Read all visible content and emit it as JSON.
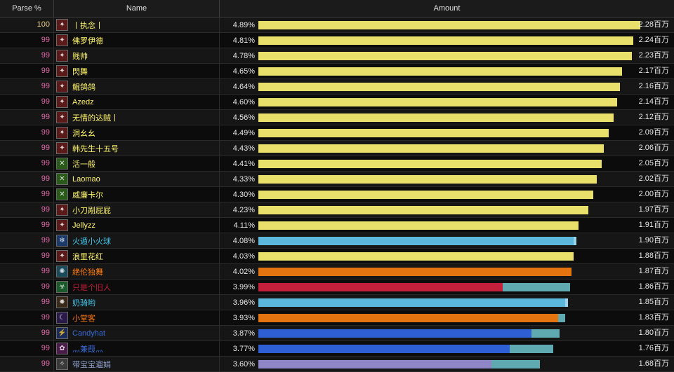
{
  "columns": {
    "parse": "Parse %",
    "name": "Name",
    "amount": "Amount"
  },
  "colors": {
    "parse_100": "#e5cc80",
    "parse_99": "#e268a8",
    "rogue": "#fff569",
    "monk": "#00ff98",
    "mage": "#40c7eb",
    "shaman": "#0070de",
    "evoker": "#33937f",
    "dh": "#a330c9",
    "dk": "#c41f3b",
    "druid": "#ff7d0a",
    "warlock": "#8787ed",
    "priest_bar": "#8fa0c8"
  },
  "rows": [
    {
      "parse": "100",
      "name": "丨执念丨",
      "pct": "4.89%",
      "value": "2.28百万",
      "amount": 2.28,
      "icon": "rogue-spec-icon",
      "icon_bg": "#5a1a1a",
      "icon_char": "✦",
      "name_color": "#fff569",
      "bar": [
        {
          "v": 2.28,
          "c": "#e8e06a"
        }
      ]
    },
    {
      "parse": "99",
      "name": "佛罗伊德",
      "pct": "4.81%",
      "value": "2.24百万",
      "amount": 2.24,
      "icon": "rogue-spec-icon",
      "icon_bg": "#5a1a1a",
      "icon_char": "✦",
      "name_color": "#fff569",
      "bar": [
        {
          "v": 2.24,
          "c": "#e8e06a"
        }
      ]
    },
    {
      "parse": "99",
      "name": "贱帅",
      "pct": "4.78%",
      "value": "2.23百万",
      "amount": 2.23,
      "icon": "rogue-spec-icon",
      "icon_bg": "#5a1a1a",
      "icon_char": "✦",
      "name_color": "#fff569",
      "bar": [
        {
          "v": 2.23,
          "c": "#e8e06a"
        }
      ]
    },
    {
      "parse": "99",
      "name": "閃舞",
      "pct": "4.65%",
      "value": "2.17百万",
      "amount": 2.17,
      "icon": "rogue-spec-icon",
      "icon_bg": "#5a1a1a",
      "icon_char": "✦",
      "name_color": "#fff569",
      "bar": [
        {
          "v": 2.17,
          "c": "#e8e06a"
        }
      ]
    },
    {
      "parse": "99",
      "name": "鲲鸽鸽",
      "pct": "4.64%",
      "value": "2.16百万",
      "amount": 2.16,
      "icon": "rogue-spec-icon",
      "icon_bg": "#5a1a1a",
      "icon_char": "✦",
      "name_color": "#fff569",
      "bar": [
        {
          "v": 2.16,
          "c": "#e8e06a"
        }
      ]
    },
    {
      "parse": "99",
      "name": "Azedz",
      "pct": "4.60%",
      "value": "2.14百万",
      "amount": 2.14,
      "icon": "rogue-spec-icon",
      "icon_bg": "#5a1a1a",
      "icon_char": "✦",
      "name_color": "#fff569",
      "bar": [
        {
          "v": 2.14,
          "c": "#e8e06a"
        }
      ]
    },
    {
      "parse": "99",
      "name": "无情的达贼丨",
      "pct": "4.56%",
      "value": "2.12百万",
      "amount": 2.12,
      "icon": "rogue-spec-icon",
      "icon_bg": "#5a1a1a",
      "icon_char": "✦",
      "name_color": "#fff569",
      "bar": [
        {
          "v": 2.12,
          "c": "#e8e06a"
        }
      ]
    },
    {
      "parse": "99",
      "name": "洞幺幺",
      "pct": "4.49%",
      "value": "2.09百万",
      "amount": 2.09,
      "icon": "rogue-spec-icon",
      "icon_bg": "#5a1a1a",
      "icon_char": "✦",
      "name_color": "#fff569",
      "bar": [
        {
          "v": 2.09,
          "c": "#e8e06a"
        }
      ]
    },
    {
      "parse": "99",
      "name": "韩先生十五号",
      "pct": "4.43%",
      "value": "2.06百万",
      "amount": 2.06,
      "icon": "rogue-spec-icon",
      "icon_bg": "#5a1a1a",
      "icon_char": "✦",
      "name_color": "#fff569",
      "bar": [
        {
          "v": 2.06,
          "c": "#e8e06a"
        }
      ]
    },
    {
      "parse": "99",
      "name": "活一般",
      "pct": "4.41%",
      "value": "2.05百万",
      "amount": 2.05,
      "icon": "outlaw-spec-icon",
      "icon_bg": "#2a5a1a",
      "icon_char": "✕",
      "name_color": "#fff569",
      "bar": [
        {
          "v": 2.05,
          "c": "#e8e06a"
        }
      ]
    },
    {
      "parse": "99",
      "name": "Laomao",
      "pct": "4.33%",
      "value": "2.02百万",
      "amount": 2.02,
      "icon": "outlaw-spec-icon",
      "icon_bg": "#2a5a1a",
      "icon_char": "✕",
      "name_color": "#fff569",
      "bar": [
        {
          "v": 2.02,
          "c": "#e8e06a"
        }
      ]
    },
    {
      "parse": "99",
      "name": "威廉卡尔",
      "pct": "4.30%",
      "value": "2.00百万",
      "amount": 2.0,
      "icon": "outlaw-spec-icon",
      "icon_bg": "#2a5a1a",
      "icon_char": "✕",
      "name_color": "#fff569",
      "bar": [
        {
          "v": 2.0,
          "c": "#e8e06a"
        }
      ]
    },
    {
      "parse": "99",
      "name": "小刀剐屁屁",
      "pct": "4.23%",
      "value": "1.97百万",
      "amount": 1.97,
      "icon": "rogue-spec-icon",
      "icon_bg": "#5a1a1a",
      "icon_char": "✦",
      "name_color": "#fff569",
      "bar": [
        {
          "v": 1.97,
          "c": "#e8e06a"
        }
      ]
    },
    {
      "parse": "99",
      "name": "Jellyzz",
      "pct": "4.11%",
      "value": "1.91百万",
      "amount": 1.91,
      "icon": "rogue-spec-icon",
      "icon_bg": "#5a1a1a",
      "icon_char": "✦",
      "name_color": "#fff569",
      "bar": [
        {
          "v": 1.91,
          "c": "#e8e06a"
        }
      ]
    },
    {
      "parse": "99",
      "name": "火遁小火球",
      "pct": "4.08%",
      "value": "1.90百万",
      "amount": 1.9,
      "icon": "frost-mage-icon",
      "icon_bg": "#1a3a6a",
      "icon_char": "❄",
      "name_color": "#40c7eb",
      "bar": [
        {
          "v": 1.88,
          "c": "#5bb8dc"
        },
        {
          "v": 0.02,
          "c": "#9ad4ec"
        }
      ]
    },
    {
      "parse": "99",
      "name": "浪里花红",
      "pct": "4.03%",
      "value": "1.88百万",
      "amount": 1.88,
      "icon": "rogue-spec-icon",
      "icon_bg": "#5a1a1a",
      "icon_char": "✦",
      "name_color": "#fff569",
      "bar": [
        {
          "v": 1.88,
          "c": "#e8e06a"
        }
      ]
    },
    {
      "parse": "99",
      "name": "絶伦独舞",
      "pct": "4.02%",
      "value": "1.87百万",
      "amount": 1.87,
      "icon": "druid-spec-icon",
      "icon_bg": "#1a4a5a",
      "icon_char": "✺",
      "name_color": "#ff7d0a",
      "bar": [
        {
          "v": 1.87,
          "c": "#e37410"
        }
      ]
    },
    {
      "parse": "99",
      "name": "只是个旧人",
      "pct": "3.99%",
      "value": "1.86百万",
      "amount": 1.86,
      "icon": "dk-spec-icon",
      "icon_bg": "#1a5a2a",
      "icon_char": "☣",
      "name_color": "#c41f3b",
      "bar": [
        {
          "v": 1.46,
          "c": "#c41f3b"
        },
        {
          "v": 0.4,
          "c": "#5eaab0"
        }
      ]
    },
    {
      "parse": "99",
      "name": "奶骑哟",
      "pct": "3.96%",
      "value": "1.85百万",
      "amount": 1.85,
      "icon": "mage-spec-icon",
      "icon_bg": "#3a2a1a",
      "icon_char": "✹",
      "name_color": "#40c7eb",
      "bar": [
        {
          "v": 1.83,
          "c": "#5bb8dc"
        },
        {
          "v": 0.02,
          "c": "#9ad4ec"
        }
      ]
    },
    {
      "parse": "99",
      "name": "小堂客",
      "pct": "3.93%",
      "value": "1.83百万",
      "amount": 1.83,
      "icon": "druid-spec-icon",
      "icon_bg": "#2a1a4a",
      "icon_char": "☾",
      "name_color": "#ff7d0a",
      "bar": [
        {
          "v": 1.79,
          "c": "#e37410"
        },
        {
          "v": 0.04,
          "c": "#5eaab0"
        }
      ]
    },
    {
      "parse": "99",
      "name": "Candyhat",
      "pct": "3.87%",
      "value": "1.80百万",
      "amount": 1.8,
      "icon": "shaman-spec-icon",
      "icon_bg": "#1a2a5a",
      "icon_char": "⚡",
      "name_color": "#3a6ad8",
      "bar": [
        {
          "v": 1.63,
          "c": "#2f5fd4"
        },
        {
          "v": 0.17,
          "c": "#5eaab0"
        }
      ]
    },
    {
      "parse": "99",
      "name": "灬兼葭灬",
      "pct": "3.77%",
      "value": "1.76百万",
      "amount": 1.76,
      "icon": "warlock-spec-icon",
      "icon_bg": "#4a1a4a",
      "icon_char": "✿",
      "name_color": "#3a6ad8",
      "bar": [
        {
          "v": 1.5,
          "c": "#2f5fd4"
        },
        {
          "v": 0.26,
          "c": "#5eaab0"
        }
      ]
    },
    {
      "parse": "99",
      "name": "带宝宝遛娟",
      "pct": "3.60%",
      "value": "1.68百万",
      "amount": 1.68,
      "icon": "priest-spec-icon",
      "icon_bg": "#3a3a3a",
      "icon_char": "✧",
      "name_color": "#8fa0c8",
      "bar": [
        {
          "v": 1.39,
          "c": "#8f86c8"
        },
        {
          "v": 0.29,
          "c": "#5eaab0"
        }
      ]
    }
  ],
  "max_amount": 2.28
}
